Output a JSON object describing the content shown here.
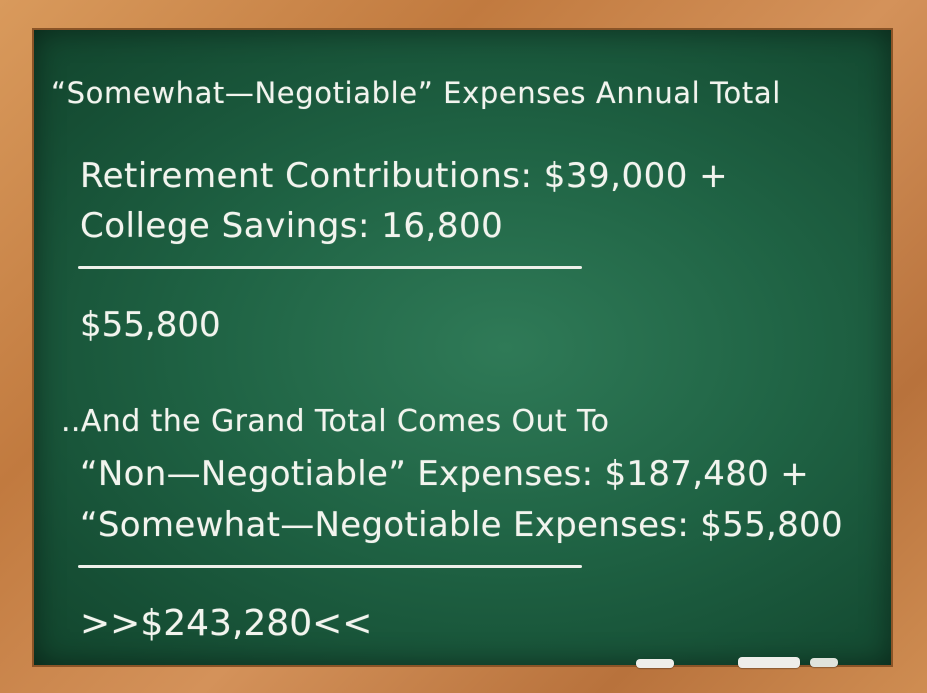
{
  "board": {
    "title": "“Somewhat—Negotiable” Expenses Annual Total",
    "line1": "Retirement Contributions: $39,000 +",
    "line2": "College Savings: 16,800",
    "subtotal": "$55,800",
    "intro": "..And the Grand Total Comes Out To",
    "line3": "“Non—Negotiable” Expenses: $187,480 +",
    "line4": "“Somewhat—Negotiable Expenses: $55,800",
    "grand_total": ">>$243,280<<"
  },
  "colors": {
    "board": "#1f6344",
    "frame": "#c8864a",
    "chalk": "#f2f4ee"
  }
}
